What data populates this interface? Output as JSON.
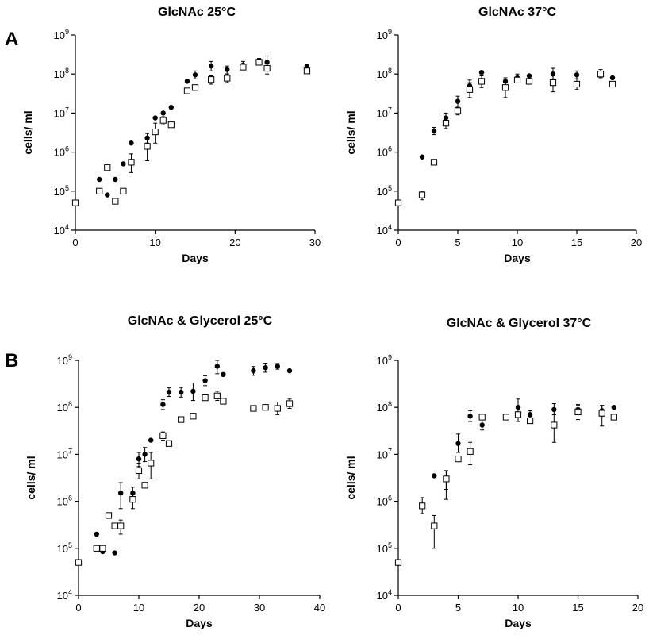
{
  "figure": {
    "panel_labels": [
      "A",
      "B"
    ]
  },
  "chart_data": [
    {
      "type": "scatter",
      "title": "GlcNAc  25°C",
      "xlabel": "Days",
      "ylabel": "cells/ ml",
      "xlim": [
        0,
        30
      ],
      "xticks": [
        0,
        10,
        20,
        30
      ],
      "yscale": "log",
      "ylim": [
        10000,
        1000000000
      ],
      "ytick_exponents": [
        4,
        5,
        6,
        7,
        8,
        9
      ],
      "grid": false,
      "series": [
        {
          "marker": "filled-circle",
          "points": [
            {
              "x": 0,
              "y": 50000
            },
            {
              "x": 3,
              "y": 200000
            },
            {
              "x": 4,
              "y": 80000
            },
            {
              "x": 5,
              "y": 200000
            },
            {
              "x": 6,
              "y": 500000
            },
            {
              "x": 7,
              "y": 1700000
            },
            {
              "x": 9,
              "y": 2300000,
              "err": [
                1700000,
                3000000
              ]
            },
            {
              "x": 10,
              "y": 7500000
            },
            {
              "x": 11,
              "y": 10000000,
              "err": [
                8000000,
                12000000
              ]
            },
            {
              "x": 12,
              "y": 14000000
            },
            {
              "x": 14,
              "y": 65000000
            },
            {
              "x": 15,
              "y": 95000000,
              "err": [
                75000000,
                120000000
              ]
            },
            {
              "x": 17,
              "y": 160000000,
              "err": [
                120000000,
                210000000
              ]
            },
            {
              "x": 19,
              "y": 130000000,
              "err": [
                100000000,
                160000000
              ]
            },
            {
              "x": 21,
              "y": 170000000,
              "err": [
                140000000,
                210000000
              ]
            },
            {
              "x": 23,
              "y": 220000000,
              "err": [
                190000000,
                250000000
              ]
            },
            {
              "x": 24,
              "y": 200000000,
              "err": [
                140000000,
                290000000
              ]
            },
            {
              "x": 29,
              "y": 160000000
            }
          ]
        },
        {
          "marker": "open-square",
          "points": [
            {
              "x": 0,
              "y": 50000
            },
            {
              "x": 3,
              "y": 100000
            },
            {
              "x": 4,
              "y": 400000
            },
            {
              "x": 5,
              "y": 55000
            },
            {
              "x": 6,
              "y": 100000
            },
            {
              "x": 7,
              "y": 550000,
              "err": [
                300000,
                900000
              ]
            },
            {
              "x": 9,
              "y": 1400000,
              "err": [
                600000,
                2200000
              ]
            },
            {
              "x": 10,
              "y": 3300000,
              "err": [
                1700000,
                5500000
              ]
            },
            {
              "x": 11,
              "y": 6500000,
              "err": [
                5000000,
                8000000
              ]
            },
            {
              "x": 12,
              "y": 5000000
            },
            {
              "x": 14,
              "y": 37000000
            },
            {
              "x": 15,
              "y": 45000000
            },
            {
              "x": 17,
              "y": 72000000,
              "err": [
                55000000,
                90000000
              ]
            },
            {
              "x": 19,
              "y": 78000000,
              "err": [
                60000000,
                100000000
              ]
            },
            {
              "x": 21,
              "y": 150000000
            },
            {
              "x": 23,
              "y": 200000000
            },
            {
              "x": 24,
              "y": 140000000,
              "err": [
                100000000,
                200000000
              ]
            },
            {
              "x": 29,
              "y": 120000000
            }
          ]
        }
      ]
    },
    {
      "type": "scatter",
      "title": "GlcNAc   37°C",
      "xlabel": "Days",
      "ylabel": "cells/ ml",
      "xlim": [
        0,
        20
      ],
      "xticks": [
        0,
        5,
        10,
        15,
        20
      ],
      "yscale": "log",
      "ylim": [
        10000,
        1000000000
      ],
      "ytick_exponents": [
        4,
        5,
        6,
        7,
        8,
        9
      ],
      "grid": false,
      "series": [
        {
          "marker": "filled-circle",
          "points": [
            {
              "x": 0,
              "y": 50000
            },
            {
              "x": 2,
              "y": 750000
            },
            {
              "x": 3,
              "y": 3500000,
              "err": [
                2800000,
                4300000
              ]
            },
            {
              "x": 4,
              "y": 7500000,
              "err": [
                5500000,
                10000000
              ]
            },
            {
              "x": 5,
              "y": 20000000,
              "err": [
                14000000,
                27000000
              ]
            },
            {
              "x": 6,
              "y": 50000000,
              "err": [
                35000000,
                70000000
              ]
            },
            {
              "x": 7,
              "y": 110000000
            },
            {
              "x": 9,
              "y": 65000000,
              "err": [
                50000000,
                80000000
              ]
            },
            {
              "x": 10,
              "y": 80000000,
              "err": [
                60000000,
                100000000
              ]
            },
            {
              "x": 11,
              "y": 90000000
            },
            {
              "x": 13,
              "y": 100000000,
              "err": [
                75000000,
                140000000
              ]
            },
            {
              "x": 15,
              "y": 95000000,
              "err": [
                75000000,
                120000000
              ]
            },
            {
              "x": 17,
              "y": 100000000,
              "err": [
                80000000,
                130000000
              ]
            },
            {
              "x": 18,
              "y": 80000000
            }
          ]
        },
        {
          "marker": "open-square",
          "points": [
            {
              "x": 0,
              "y": 50000
            },
            {
              "x": 2,
              "y": 80000,
              "err": [
                60000,
                100000
              ]
            },
            {
              "x": 3,
              "y": 550000
            },
            {
              "x": 4,
              "y": 5500000,
              "err": [
                4000000,
                7000000
              ]
            },
            {
              "x": 5,
              "y": 11500000,
              "err": [
                9000000,
                15000000
              ]
            },
            {
              "x": 6,
              "y": 40000000,
              "err": [
                25000000,
                60000000
              ]
            },
            {
              "x": 7,
              "y": 65000000,
              "err": [
                45000000,
                90000000
              ]
            },
            {
              "x": 9,
              "y": 45000000,
              "err": [
                25000000,
                65000000
              ]
            },
            {
              "x": 10,
              "y": 70000000
            },
            {
              "x": 11,
              "y": 65000000
            },
            {
              "x": 13,
              "y": 60000000,
              "err": [
                35000000,
                90000000
              ]
            },
            {
              "x": 15,
              "y": 55000000,
              "err": [
                40000000,
                75000000
              ]
            },
            {
              "x": 17,
              "y": 100000000
            },
            {
              "x": 18,
              "y": 55000000
            }
          ]
        }
      ]
    },
    {
      "type": "scatter",
      "title": "GlcNAc & Glycerol 25°C",
      "xlabel": "Days",
      "ylabel": "cells/ ml",
      "xlim": [
        0,
        40
      ],
      "xticks": [
        0,
        10,
        20,
        30,
        40
      ],
      "yscale": "log",
      "ylim": [
        10000,
        1000000000
      ],
      "ytick_exponents": [
        4,
        5,
        6,
        7,
        8,
        9
      ],
      "grid": false,
      "series": [
        {
          "marker": "filled-circle",
          "points": [
            {
              "x": 0,
              "y": 50000
            },
            {
              "x": 3,
              "y": 200000
            },
            {
              "x": 4,
              "y": 85000
            },
            {
              "x": 5,
              "y": 500000
            },
            {
              "x": 6,
              "y": 80000
            },
            {
              "x": 7,
              "y": 1500000,
              "err": [
                700000,
                2500000
              ]
            },
            {
              "x": 9,
              "y": 1500000,
              "err": [
                1100000,
                2000000
              ]
            },
            {
              "x": 10,
              "y": 8000000,
              "err": [
                5500000,
                11000000
              ]
            },
            {
              "x": 11,
              "y": 10000000,
              "err": [
                7000000,
                14000000
              ]
            },
            {
              "x": 12,
              "y": 20000000
            },
            {
              "x": 14,
              "y": 115000000,
              "err": [
                90000000,
                145000000
              ]
            },
            {
              "x": 15,
              "y": 210000000,
              "err": [
                170000000,
                260000000
              ]
            },
            {
              "x": 17,
              "y": 210000000,
              "err": [
                165000000,
                265000000
              ]
            },
            {
              "x": 19,
              "y": 220000000,
              "err": [
                140000000,
                330000000
              ]
            },
            {
              "x": 21,
              "y": 370000000,
              "err": [
                290000000,
                470000000
              ]
            },
            {
              "x": 23,
              "y": 750000000,
              "err": [
                520000000,
                1000000000
              ]
            },
            {
              "x": 24,
              "y": 500000000
            },
            {
              "x": 29,
              "y": 600000000,
              "err": [
                480000000,
                740000000
              ]
            },
            {
              "x": 31,
              "y": 700000000,
              "err": [
                560000000,
                870000000
              ]
            },
            {
              "x": 33,
              "y": 750000000,
              "err": [
                650000000,
                860000000
              ]
            },
            {
              "x": 35,
              "y": 600000000
            }
          ]
        },
        {
          "marker": "open-square",
          "points": [
            {
              "x": 0,
              "y": 50000
            },
            {
              "x": 3,
              "y": 100000
            },
            {
              "x": 4,
              "y": 100000
            },
            {
              "x": 5,
              "y": 500000
            },
            {
              "x": 6,
              "y": 300000
            },
            {
              "x": 7,
              "y": 300000,
              "err": [
                200000,
                400000
              ]
            },
            {
              "x": 9,
              "y": 1100000,
              "err": [
                700000,
                1600000
              ]
            },
            {
              "x": 10,
              "y": 4500000,
              "err": [
                3000000,
                6500000
              ]
            },
            {
              "x": 11,
              "y": 2200000
            },
            {
              "x": 12,
              "y": 6500000,
              "err": [
                3000000,
                11000000
              ]
            },
            {
              "x": 14,
              "y": 25000000,
              "err": [
                20000000,
                30000000
              ]
            },
            {
              "x": 15,
              "y": 17000000
            },
            {
              "x": 17,
              "y": 55000000
            },
            {
              "x": 19,
              "y": 65000000
            },
            {
              "x": 21,
              "y": 160000000
            },
            {
              "x": 23,
              "y": 175000000,
              "err": [
                140000000,
                220000000
              ]
            },
            {
              "x": 24,
              "y": 135000000
            },
            {
              "x": 29,
              "y": 95000000
            },
            {
              "x": 31,
              "y": 100000000
            },
            {
              "x": 33,
              "y": 95000000,
              "err": [
                70000000,
                130000000
              ]
            },
            {
              "x": 35,
              "y": 120000000,
              "err": [
                95000000,
                150000000
              ]
            }
          ]
        }
      ]
    },
    {
      "type": "scatter",
      "title": "GlcNAc & Glycerol 37°C",
      "xlabel": "Days",
      "ylabel": "cells/ ml",
      "xlim": [
        0,
        20
      ],
      "xticks": [
        0,
        5,
        10,
        15,
        20
      ],
      "yscale": "log",
      "ylim": [
        10000,
        1000000000
      ],
      "ytick_exponents": [
        4,
        5,
        6,
        7,
        8,
        9
      ],
      "grid": false,
      "series": [
        {
          "marker": "filled-circle",
          "points": [
            {
              "x": 0,
              "y": 50000
            },
            {
              "x": 2,
              "y": 800000,
              "err": [
                550000,
                1200000
              ]
            },
            {
              "x": 3,
              "y": 3500000
            },
            {
              "x": 4,
              "y": 3000000,
              "err": [
                1800000,
                4500000
              ]
            },
            {
              "x": 5,
              "y": 17000000,
              "err": [
                11000000,
                27000000
              ]
            },
            {
              "x": 6,
              "y": 65000000,
              "err": [
                50000000,
                85000000
              ]
            },
            {
              "x": 7,
              "y": 42000000,
              "err": [
                33000000,
                55000000
              ]
            },
            {
              "x": 9,
              "y": 60000000
            },
            {
              "x": 10,
              "y": 100000000,
              "err": [
                70000000,
                150000000
              ]
            },
            {
              "x": 11,
              "y": 70000000,
              "err": [
                60000000,
                85000000
              ]
            },
            {
              "x": 13,
              "y": 90000000,
              "err": [
                70000000,
                120000000
              ]
            },
            {
              "x": 15,
              "y": 90000000,
              "err": [
                70000000,
                115000000
              ]
            },
            {
              "x": 17,
              "y": 85000000,
              "err": [
                65000000,
                110000000
              ]
            },
            {
              "x": 18,
              "y": 100000000
            }
          ]
        },
        {
          "marker": "open-square",
          "points": [
            {
              "x": 0,
              "y": 50000
            },
            {
              "x": 2,
              "y": 800000
            },
            {
              "x": 3,
              "y": 300000,
              "err": [
                100000,
                500000
              ]
            },
            {
              "x": 4,
              "y": 3000000,
              "err": [
                1100000,
                4500000
              ]
            },
            {
              "x": 5,
              "y": 8000000
            },
            {
              "x": 6,
              "y": 11500000,
              "err": [
                6000000,
                18000000
              ]
            },
            {
              "x": 7,
              "y": 62000000
            },
            {
              "x": 9,
              "y": 62000000
            },
            {
              "x": 10,
              "y": 70000000,
              "err": [
                50000000,
                95000000
              ]
            },
            {
              "x": 11,
              "y": 52000000
            },
            {
              "x": 13,
              "y": 42000000,
              "err": [
                18000000,
                70000000
              ]
            },
            {
              "x": 15,
              "y": 80000000,
              "err": [
                55000000,
                110000000
              ]
            },
            {
              "x": 17,
              "y": 75000000,
              "err": [
                40000000,
                110000000
              ]
            },
            {
              "x": 18,
              "y": 62000000
            }
          ]
        }
      ]
    }
  ]
}
